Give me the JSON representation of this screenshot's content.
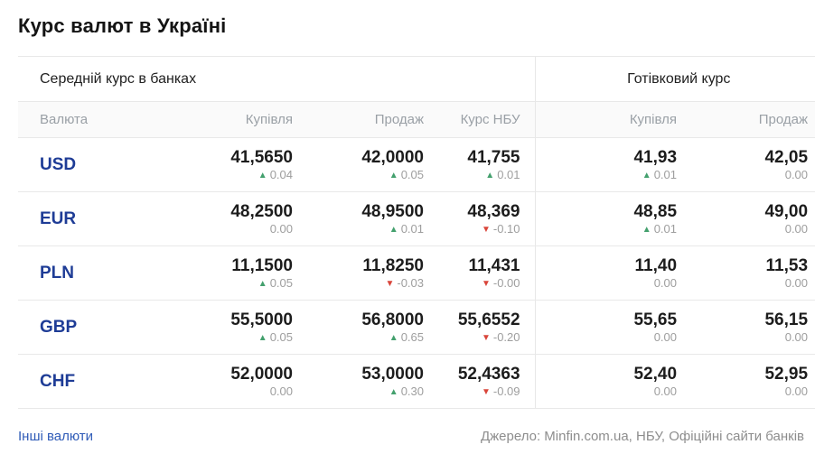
{
  "page": {
    "title": "Курс валют в Україні"
  },
  "colors": {
    "currency_link_blue": "#1e3c96",
    "footer_link_blue": "#2f5bb7",
    "up_green": "#43a06d",
    "down_red": "#d9453a",
    "header_gray": "#9aa0a6",
    "change_gray": "#9e9e9e"
  },
  "table": {
    "group_headers": {
      "bank": "Середній курс в банках",
      "cash": "Готівковий курс"
    },
    "columns": {
      "currency": "Валюта",
      "bank_buy": "Купівля",
      "bank_sell": "Продаж",
      "nbu": "Курс НБУ",
      "cash_buy": "Купівля",
      "cash_sell": "Продаж"
    },
    "rows": [
      {
        "code": "USD",
        "cells": [
          {
            "value": "41,5650",
            "arrow": "▲",
            "dir": "up",
            "change": "0.04"
          },
          {
            "value": "42,0000",
            "arrow": "▲",
            "dir": "up",
            "change": "0.05"
          },
          {
            "value": "41,755",
            "arrow": "▲",
            "dir": "up",
            "change": "0.01"
          },
          {
            "value": "41,93",
            "arrow": "▲",
            "dir": "up",
            "change": "0.01"
          },
          {
            "value": "42,05",
            "arrow": "",
            "dir": "flat",
            "change": "0.00"
          }
        ]
      },
      {
        "code": "EUR",
        "cells": [
          {
            "value": "48,2500",
            "arrow": "",
            "dir": "flat",
            "change": "0.00"
          },
          {
            "value": "48,9500",
            "arrow": "▲",
            "dir": "up",
            "change": "0.01"
          },
          {
            "value": "48,369",
            "arrow": "▼",
            "dir": "down",
            "change": "-0.10"
          },
          {
            "value": "48,85",
            "arrow": "▲",
            "dir": "up",
            "change": "0.01"
          },
          {
            "value": "49,00",
            "arrow": "",
            "dir": "flat",
            "change": "0.00"
          }
        ]
      },
      {
        "code": "PLN",
        "cells": [
          {
            "value": "11,1500",
            "arrow": "▲",
            "dir": "up",
            "change": "0.05"
          },
          {
            "value": "11,8250",
            "arrow": "▼",
            "dir": "down",
            "change": "-0.03"
          },
          {
            "value": "11,431",
            "arrow": "▼",
            "dir": "down",
            "change": "-0.00"
          },
          {
            "value": "11,40",
            "arrow": "",
            "dir": "flat",
            "change": "0.00"
          },
          {
            "value": "11,53",
            "arrow": "",
            "dir": "flat",
            "change": "0.00"
          }
        ]
      },
      {
        "code": "GBP",
        "cells": [
          {
            "value": "55,5000",
            "arrow": "▲",
            "dir": "up",
            "change": "0.05"
          },
          {
            "value": "56,8000",
            "arrow": "▲",
            "dir": "up",
            "change": "0.65"
          },
          {
            "value": "55,6552",
            "arrow": "▼",
            "dir": "down",
            "change": "-0.20"
          },
          {
            "value": "55,65",
            "arrow": "",
            "dir": "flat",
            "change": "0.00"
          },
          {
            "value": "56,15",
            "arrow": "",
            "dir": "flat",
            "change": "0.00"
          }
        ]
      },
      {
        "code": "CHF",
        "cells": [
          {
            "value": "52,0000",
            "arrow": "",
            "dir": "flat",
            "change": "0.00"
          },
          {
            "value": "53,0000",
            "arrow": "▲",
            "dir": "up",
            "change": "0.30"
          },
          {
            "value": "52,4363",
            "arrow": "▼",
            "dir": "down",
            "change": "-0.09"
          },
          {
            "value": "52,40",
            "arrow": "",
            "dir": "flat",
            "change": "0.00"
          },
          {
            "value": "52,95",
            "arrow": "",
            "dir": "flat",
            "change": "0.00"
          }
        ]
      }
    ]
  },
  "footer": {
    "other_link": "Інші валюти",
    "source": "Джерело: Minfin.com.ua, НБУ, Офіційні сайти банків"
  }
}
